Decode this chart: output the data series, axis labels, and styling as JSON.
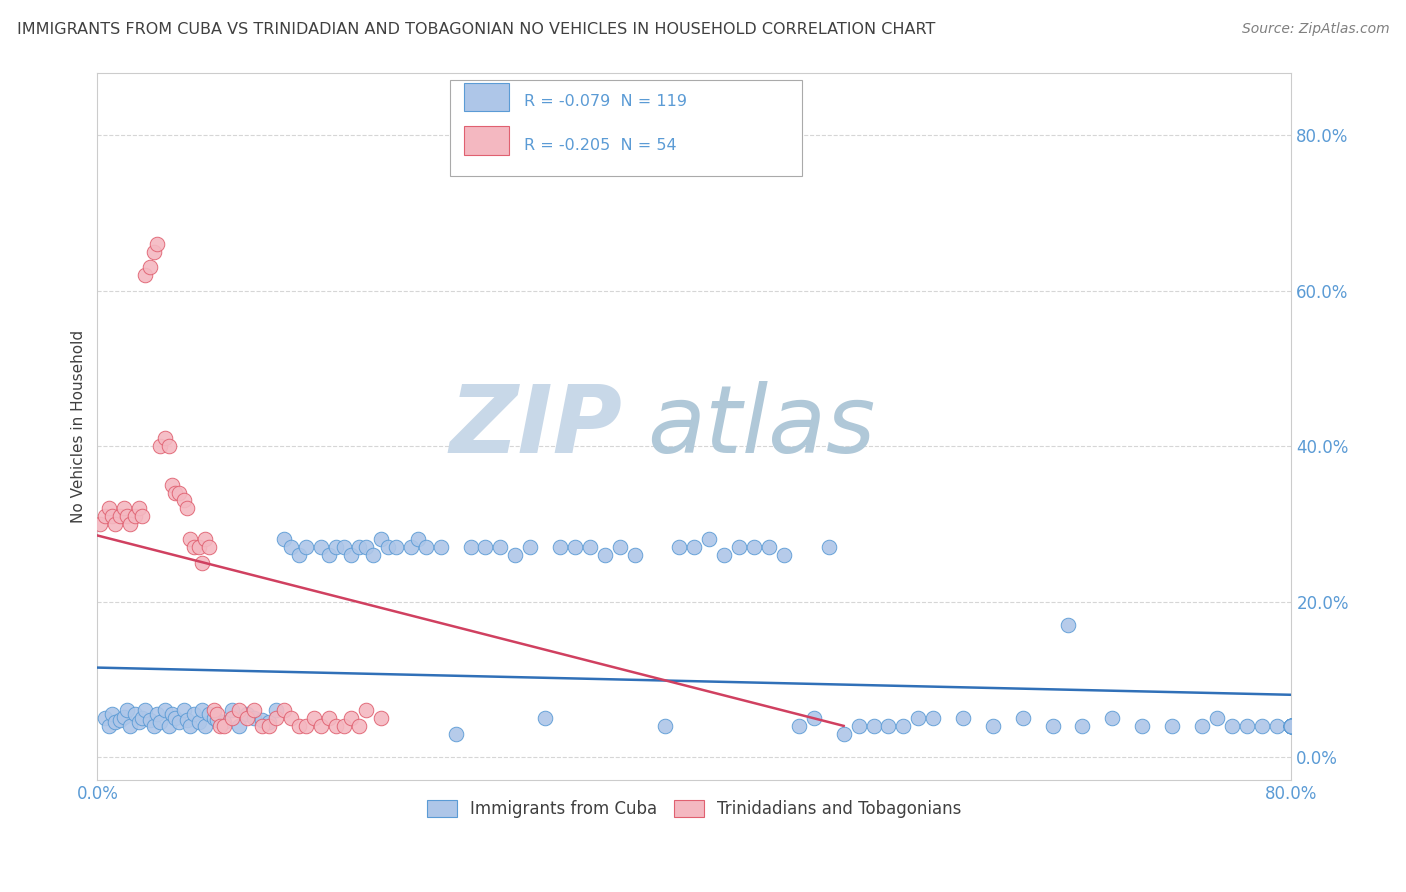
{
  "title": "IMMIGRANTS FROM CUBA VS TRINIDADIAN AND TOBAGONIAN NO VEHICLES IN HOUSEHOLD CORRELATION CHART",
  "source": "Source: ZipAtlas.com",
  "ylabel": "No Vehicles in Household",
  "xlim": [
    0.0,
    0.8
  ],
  "ylim": [
    -0.03,
    0.88
  ],
  "xticks": [
    0.0,
    0.1,
    0.2,
    0.3,
    0.4,
    0.5,
    0.6,
    0.7,
    0.8
  ],
  "yticks": [
    0.0,
    0.2,
    0.4,
    0.6,
    0.8
  ],
  "ytick_labels": [
    "0.0%",
    "20.0%",
    "40.0%",
    "60.0%",
    "80.0%"
  ],
  "legend_top_entries": [
    {
      "label": "R = -0.079  N = 119",
      "fill_color": "#aec6e8",
      "edge_color": "#5b9bd5"
    },
    {
      "label": "R = -0.205  N = 54",
      "fill_color": "#f4b8c1",
      "edge_color": "#e06070"
    }
  ],
  "legend_bottom_labels": [
    "Immigrants from Cuba",
    "Trinidadians and Tobagonians"
  ],
  "cuba_color": "#aec6e8",
  "cuba_edge_color": "#5b9bd5",
  "tnt_color": "#f4b8c1",
  "tnt_edge_color": "#e06070",
  "trend_cuba_color": "#3070b8",
  "trend_tnt_color": "#d04060",
  "background_color": "#ffffff",
  "grid_color": "#cccccc",
  "watermark_zip_color": "#c8d8e8",
  "watermark_atlas_color": "#b0c8d8",
  "title_color": "#404040",
  "axis_tick_color": "#5b9bd5",
  "ylabel_color": "#404040",
  "source_color": "#808080",
  "R_cuba": -0.079,
  "N_cuba": 119,
  "R_tnt": -0.205,
  "N_tnt": 54,
  "cuba_x": [
    0.005,
    0.008,
    0.01,
    0.012,
    0.015,
    0.018,
    0.02,
    0.022,
    0.025,
    0.028,
    0.03,
    0.032,
    0.035,
    0.038,
    0.04,
    0.042,
    0.045,
    0.048,
    0.05,
    0.052,
    0.055,
    0.058,
    0.06,
    0.062,
    0.065,
    0.068,
    0.07,
    0.072,
    0.075,
    0.078,
    0.08,
    0.085,
    0.09,
    0.095,
    0.1,
    0.105,
    0.11,
    0.115,
    0.12,
    0.125,
    0.13,
    0.135,
    0.14,
    0.15,
    0.155,
    0.16,
    0.165,
    0.17,
    0.175,
    0.18,
    0.185,
    0.19,
    0.195,
    0.2,
    0.21,
    0.215,
    0.22,
    0.23,
    0.24,
    0.25,
    0.26,
    0.27,
    0.28,
    0.29,
    0.3,
    0.31,
    0.32,
    0.33,
    0.34,
    0.35,
    0.36,
    0.38,
    0.39,
    0.4,
    0.41,
    0.42,
    0.43,
    0.44,
    0.45,
    0.46,
    0.47,
    0.48,
    0.49,
    0.5,
    0.51,
    0.52,
    0.53,
    0.54,
    0.55,
    0.56,
    0.58,
    0.6,
    0.62,
    0.64,
    0.65,
    0.66,
    0.68,
    0.7,
    0.72,
    0.74,
    0.75,
    0.76,
    0.77,
    0.78,
    0.79,
    0.8,
    0.8,
    0.8,
    0.8,
    0.8,
    0.8,
    0.8,
    0.8,
    0.8,
    0.8,
    0.8,
    0.8,
    0.8,
    0.8
  ],
  "cuba_y": [
    0.05,
    0.04,
    0.055,
    0.045,
    0.048,
    0.052,
    0.06,
    0.04,
    0.055,
    0.045,
    0.05,
    0.06,
    0.048,
    0.04,
    0.055,
    0.045,
    0.06,
    0.04,
    0.055,
    0.05,
    0.045,
    0.06,
    0.048,
    0.04,
    0.055,
    0.045,
    0.06,
    0.04,
    0.055,
    0.05,
    0.048,
    0.045,
    0.06,
    0.04,
    0.055,
    0.05,
    0.048,
    0.045,
    0.06,
    0.28,
    0.27,
    0.26,
    0.27,
    0.27,
    0.26,
    0.27,
    0.27,
    0.26,
    0.27,
    0.27,
    0.26,
    0.28,
    0.27,
    0.27,
    0.27,
    0.28,
    0.27,
    0.27,
    0.03,
    0.27,
    0.27,
    0.27,
    0.26,
    0.27,
    0.05,
    0.27,
    0.27,
    0.27,
    0.26,
    0.27,
    0.26,
    0.04,
    0.27,
    0.27,
    0.28,
    0.26,
    0.27,
    0.27,
    0.27,
    0.26,
    0.04,
    0.05,
    0.27,
    0.03,
    0.04,
    0.04,
    0.04,
    0.04,
    0.05,
    0.05,
    0.05,
    0.04,
    0.05,
    0.04,
    0.17,
    0.04,
    0.05,
    0.04,
    0.04,
    0.04,
    0.05,
    0.04,
    0.04,
    0.04,
    0.04,
    0.04,
    0.04,
    0.04,
    0.04,
    0.04,
    0.04,
    0.04,
    0.04,
    0.04,
    0.04,
    0.04,
    0.04,
    0.04,
    0.04
  ],
  "tnt_x": [
    0.002,
    0.005,
    0.008,
    0.01,
    0.012,
    0.015,
    0.018,
    0.02,
    0.022,
    0.025,
    0.028,
    0.03,
    0.032,
    0.035,
    0.038,
    0.04,
    0.042,
    0.045,
    0.048,
    0.05,
    0.052,
    0.055,
    0.058,
    0.06,
    0.062,
    0.065,
    0.068,
    0.07,
    0.072,
    0.075,
    0.078,
    0.08,
    0.082,
    0.085,
    0.09,
    0.095,
    0.1,
    0.105,
    0.11,
    0.115,
    0.12,
    0.125,
    0.13,
    0.135,
    0.14,
    0.145,
    0.15,
    0.155,
    0.16,
    0.165,
    0.17,
    0.175,
    0.18,
    0.19
  ],
  "tnt_y": [
    0.3,
    0.31,
    0.32,
    0.31,
    0.3,
    0.31,
    0.32,
    0.31,
    0.3,
    0.31,
    0.32,
    0.31,
    0.62,
    0.63,
    0.65,
    0.66,
    0.4,
    0.41,
    0.4,
    0.35,
    0.34,
    0.34,
    0.33,
    0.32,
    0.28,
    0.27,
    0.27,
    0.25,
    0.28,
    0.27,
    0.06,
    0.055,
    0.04,
    0.04,
    0.05,
    0.06,
    0.05,
    0.06,
    0.04,
    0.04,
    0.05,
    0.06,
    0.05,
    0.04,
    0.04,
    0.05,
    0.04,
    0.05,
    0.04,
    0.04,
    0.05,
    0.04,
    0.06,
    0.05
  ],
  "trend_cuba_x0": 0.0,
  "trend_cuba_x1": 0.8,
  "trend_cuba_y0": 0.115,
  "trend_cuba_y1": 0.08,
  "trend_tnt_x0": 0.0,
  "trend_tnt_x1": 0.5,
  "trend_tnt_y0": 0.285,
  "trend_tnt_y1": 0.04
}
